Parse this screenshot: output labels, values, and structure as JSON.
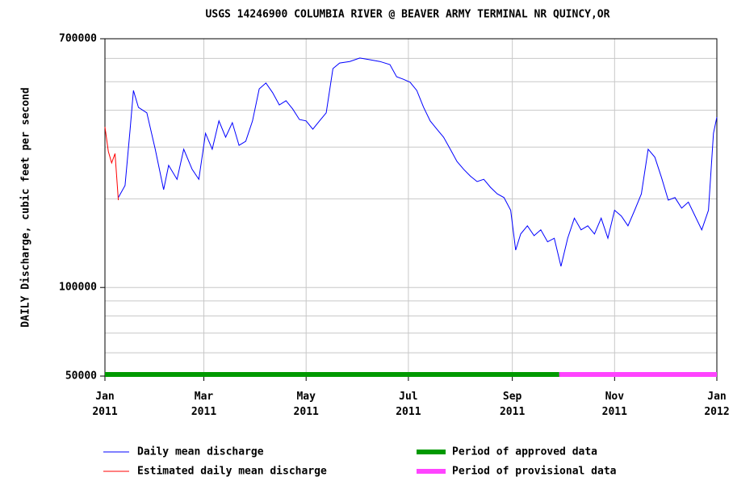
{
  "chart_data": {
    "type": "line",
    "title": "USGS 14246900 COLUMBIA RIVER @ BEAVER ARMY TERMINAL NR QUINCY,OR",
    "y_label": "DAILY Discharge, cubic feet per second",
    "log_y": true,
    "grid": true,
    "xlim": [
      0,
      365
    ],
    "xticks": [
      {
        "value": 0,
        "label": "Jan 2011"
      },
      {
        "value": 59,
        "label": "Mar 2011"
      },
      {
        "value": 120,
        "label": "May 2011"
      },
      {
        "value": 181,
        "label": "Jul 2011"
      },
      {
        "value": 243,
        "label": "Sep 2011"
      },
      {
        "value": 304,
        "label": "Nov 2011"
      },
      {
        "value": 365,
        "label": "Jan 2012"
      }
    ],
    "ylim": [
      50000,
      700000
    ],
    "yticks": [
      50000,
      100000,
      700000
    ],
    "yminor": [
      60000,
      70000,
      80000,
      90000,
      200000,
      300000,
      400000,
      500000,
      600000
    ],
    "series": [
      {
        "name": "Daily mean discharge",
        "color": "#0000ff",
        "x": [
          8,
          12,
          15,
          17,
          20,
          25,
          30,
          35,
          38,
          43,
          47,
          52,
          56,
          60,
          64,
          68,
          72,
          76,
          80,
          84,
          88,
          92,
          96,
          100,
          104,
          108,
          112,
          116,
          120,
          124,
          128,
          132,
          136,
          140,
          146,
          152,
          158,
          164,
          170,
          174,
          178,
          182,
          186,
          190,
          194,
          198,
          202,
          206,
          210,
          214,
          218,
          222,
          226,
          230,
          234,
          238,
          242,
          245,
          248,
          252,
          256,
          260,
          264,
          268,
          272,
          276,
          280,
          284,
          288,
          292,
          296,
          300,
          304,
          308,
          312,
          316,
          320,
          324,
          328,
          332,
          336,
          340,
          344,
          348,
          352,
          356,
          360,
          363,
          365
        ],
        "values": [
          202000,
          222000,
          345000,
          467000,
          409000,
          392000,
          295000,
          215000,
          260000,
          233000,
          295000,
          252000,
          233000,
          334000,
          295000,
          368000,
          324000,
          363000,
          304000,
          314000,
          368000,
          473000,
          495000,
          459000,
          417000,
          431000,
          404000,
          372000,
          368000,
          345000,
          368000,
          392000,
          554000,
          579000,
          586000,
          602000,
          594000,
          586000,
          572000,
          520000,
          510000,
          498000,
          467000,
          410000,
          368000,
          345000,
          324000,
          295000,
          268000,
          252000,
          239000,
          229000,
          233000,
          219000,
          208000,
          202000,
          183000,
          134000,
          152000,
          162000,
          150000,
          157000,
          143000,
          147000,
          118000,
          147000,
          172000,
          157000,
          162000,
          152000,
          172000,
          147000,
          183000,
          175000,
          162000,
          183000,
          208000,
          295000,
          277000,
          236000,
          198000,
          202000,
          186000,
          195000,
          175000,
          157000,
          183000,
          334000,
          379000
        ]
      },
      {
        "name": "Estimated daily mean discharge",
        "color": "#ff0000",
        "x": [
          0,
          2,
          4,
          6,
          8
        ],
        "values": [
          351000,
          290000,
          265000,
          285000,
          198000
        ]
      }
    ],
    "periods": [
      {
        "name": "Period of approved data",
        "color": "#009900",
        "start": 0,
        "end": 271
      },
      {
        "name": "Period of provisional data",
        "color": "#ff44ff",
        "start": 271,
        "end": 365
      }
    ]
  }
}
